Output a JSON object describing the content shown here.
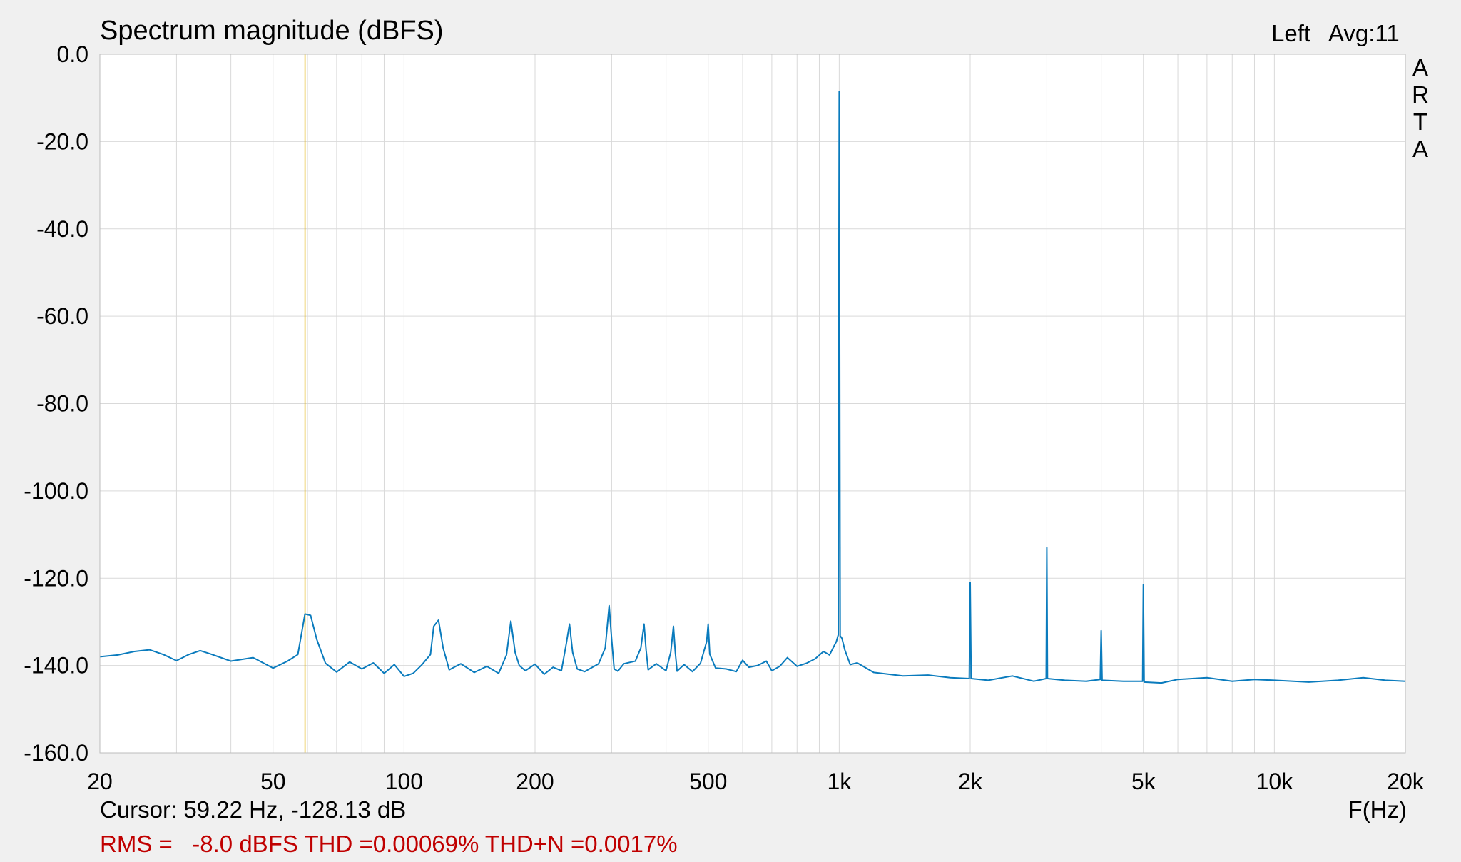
{
  "header": {
    "title": "Spectrum magnitude (dBFS)",
    "channel": "Left",
    "avg": "Avg:11",
    "watermark": [
      "A",
      "R",
      "T",
      "A"
    ]
  },
  "footer": {
    "cursor": "Cursor: 59.22 Hz, -128.13 dB",
    "xunit": "F(Hz)",
    "rms": "RMS =",
    "rms_value": "-8.0 dBFS",
    "thd": "THD =0.00069%",
    "thdn": "THD+N =0.0017%"
  },
  "colors": {
    "trace": "#0a7bbd",
    "cursor_line": "#e0b000",
    "grid": "#d9d9d9",
    "plot_bg": "#ffffff",
    "stats_text": "#c00000"
  },
  "chart_data": {
    "type": "line",
    "title": "Spectrum magnitude (dBFS)",
    "xlabel": "F(Hz)",
    "ylabel": "",
    "xscale": "log",
    "xlim": [
      20,
      20000
    ],
    "ylim": [
      -160,
      0
    ],
    "grid": true,
    "x_ticks": [
      20,
      50,
      100,
      200,
      500,
      1000,
      2000,
      5000,
      10000,
      20000
    ],
    "x_tick_labels": [
      "20",
      "50",
      "100",
      "200",
      "500",
      "1k",
      "2k",
      "5k",
      "10k",
      "20k"
    ],
    "y_ticks": [
      0,
      -20,
      -40,
      -60,
      -80,
      -100,
      -120,
      -140,
      -160
    ],
    "y_tick_labels": [
      "0.0",
      "-20.0",
      "-40.0",
      "-60.0",
      "-80.0",
      "-100.0",
      "-120.0",
      "-140.0",
      "-160.0"
    ],
    "cursor": {
      "x": 59.22,
      "y": -128.13
    },
    "series": [
      {
        "x": [
          20,
          22,
          24,
          26,
          28,
          30,
          32,
          34,
          36,
          40,
          45,
          50,
          54,
          57,
          59.2,
          61,
          63,
          66,
          70,
          75,
          80,
          85,
          90,
          95,
          100,
          105,
          110,
          115,
          117,
          120,
          123,
          127,
          135,
          145,
          155,
          165,
          172,
          176,
          180,
          184,
          190,
          200,
          210,
          220,
          230,
          236,
          240,
          244,
          250,
          260,
          280,
          290,
          296,
          300,
          304,
          310,
          320,
          340,
          350,
          356,
          360,
          364,
          380,
          400,
          410,
          416,
          420,
          424,
          440,
          460,
          480,
          496,
          500,
          504,
          520,
          550,
          580,
          600,
          620,
          650,
          680,
          700,
          730,
          760,
          800,
          840,
          880,
          920,
          950,
          970,
          985,
          995,
          1000,
          1005,
          1015,
          1030,
          1060,
          1100,
          1200,
          1400,
          1600,
          1800,
          1990,
          2000,
          2010,
          2200,
          2500,
          2800,
          2990,
          3000,
          3010,
          3300,
          3700,
          3980,
          4000,
          4020,
          4500,
          4980,
          5000,
          5020,
          5500,
          6000,
          7000,
          8000,
          9000,
          10000,
          12000,
          14000,
          16000,
          18000,
          20000
        ],
        "y": [
          -138,
          -137.6,
          -136.8,
          -136.4,
          -137.5,
          -138.9,
          -137.5,
          -136.6,
          -137.4,
          -139,
          -138.2,
          -140.6,
          -139,
          -137.5,
          -128.2,
          -128.5,
          -134,
          -139.5,
          -141.5,
          -139.2,
          -140.8,
          -139.4,
          -141.8,
          -139.8,
          -142.5,
          -141.8,
          -139.8,
          -137.5,
          -131,
          -129.6,
          -136,
          -141,
          -139.6,
          -141.6,
          -140.2,
          -141.8,
          -137.6,
          -129.8,
          -137,
          -140,
          -141.2,
          -139.7,
          -142,
          -140.4,
          -141.2,
          -135,
          -130.5,
          -137,
          -140.8,
          -141.4,
          -139.6,
          -136,
          -126.3,
          -134,
          -140.8,
          -141.3,
          -139.6,
          -139,
          -136,
          -130.5,
          -136.5,
          -141,
          -139.6,
          -141.2,
          -137,
          -131,
          -137,
          -141.3,
          -139.8,
          -141.4,
          -139.5,
          -134.5,
          -130.5,
          -137.4,
          -140.6,
          -140.8,
          -141.4,
          -138.8,
          -140.4,
          -140,
          -139,
          -141.2,
          -140.2,
          -138.2,
          -140.2,
          -139.5,
          -138.5,
          -136.8,
          -137.6,
          -135.8,
          -134.5,
          -133,
          -8.5,
          -133.2,
          -133.8,
          -136.4,
          -139.8,
          -139.4,
          -141.6,
          -142.4,
          -142.2,
          -142.8,
          -143,
          -121,
          -143,
          -143.4,
          -142.4,
          -143.6,
          -143,
          -113,
          -143,
          -143.4,
          -143.6,
          -143.2,
          -132,
          -143.4,
          -143.6,
          -143.6,
          -121.5,
          -143.8,
          -144,
          -143.2,
          -142.8,
          -143.6,
          -143.2,
          -143.4,
          -143.8,
          -143.4,
          -142.8,
          -143.4,
          -143.6
        ]
      }
    ]
  }
}
